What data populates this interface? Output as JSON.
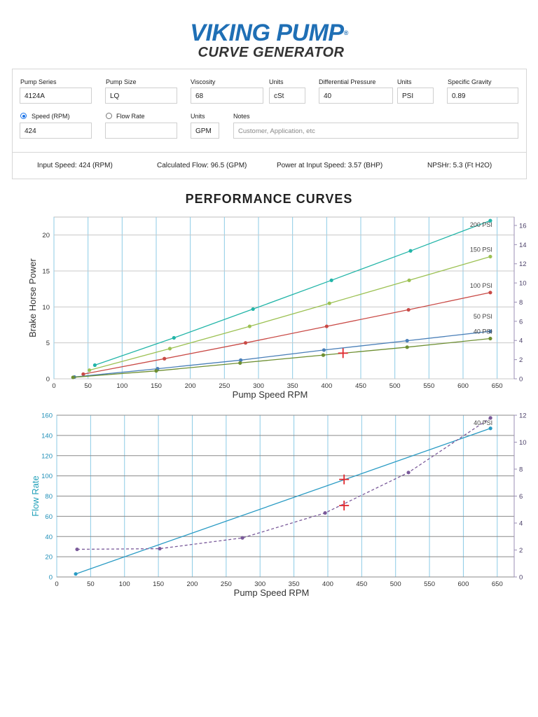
{
  "logo": {
    "line1": "VIKING PUMP",
    "registered": "®",
    "line2": "CURVE GENERATOR"
  },
  "form": {
    "pump_series": {
      "label": "Pump Series",
      "value": "4124A"
    },
    "pump_size": {
      "label": "Pump Size",
      "value": "LQ"
    },
    "viscosity": {
      "label": "Viscosity",
      "value": "68"
    },
    "viscosity_units": {
      "label": "Units",
      "value": "cSt"
    },
    "differential_pressure": {
      "label": "Differential Pressure",
      "value": "40"
    },
    "pressure_units": {
      "label": "Units",
      "value": "PSI"
    },
    "specific_gravity": {
      "label": "Specific Gravity",
      "value": "0.89"
    },
    "speed": {
      "label": "Speed (RPM)",
      "value": "424",
      "selected": true
    },
    "flow_rate": {
      "label": "Flow Rate",
      "value": "",
      "selected": false
    },
    "flow_units": {
      "label": "Units",
      "value": "GPM"
    },
    "notes": {
      "label": "Notes",
      "placeholder": "Customer, Application, etc"
    }
  },
  "results": {
    "input_speed": "Input Speed: 424 (RPM)",
    "calculated_flow": "Calculated Flow: 96.5 (GPM)",
    "power": "Power at Input Speed: 3.57 (BHP)",
    "npshr": "NPSHr: 5.3 (Ft H2O)"
  },
  "section_title": "PERFORMANCE CURVES",
  "chart_data": [
    {
      "type": "line",
      "title": "",
      "xlabel": "Pump Speed RPM",
      "ylabel": "Brake Horse Power",
      "xlim": [
        0,
        675
      ],
      "ylim": [
        0,
        22.5
      ],
      "x_ticks": [
        0,
        50,
        100,
        150,
        200,
        250,
        300,
        350,
        400,
        450,
        500,
        550,
        600,
        650
      ],
      "y_ticks": [
        0,
        5,
        10,
        15,
        20
      ],
      "y2lim": [
        0,
        16.875
      ],
      "y2_ticks": [
        0,
        2,
        4,
        6,
        8,
        10,
        12,
        14,
        16
      ],
      "grid": true,
      "series": [
        {
          "name": "200 PSI",
          "color": "#23b5a8",
          "points": [
            [
              60,
              1.9
            ],
            [
              176,
              5.7
            ],
            [
              292,
              9.7
            ],
            [
              407,
              13.7
            ],
            [
              523,
              17.8
            ],
            [
              640,
              22.0
            ]
          ]
        },
        {
          "name": "150 PSI",
          "color": "#9cc153",
          "points": [
            [
              52,
              1.2
            ],
            [
              170,
              4.2
            ],
            [
              287,
              7.3
            ],
            [
              404,
              10.5
            ],
            [
              521,
              13.7
            ],
            [
              640,
              17.0
            ]
          ]
        },
        {
          "name": "100 PSI",
          "color": "#c94a46",
          "points": [
            [
              43,
              0.65
            ],
            [
              162,
              2.8
            ],
            [
              281,
              5.0
            ],
            [
              400,
              7.3
            ],
            [
              520,
              9.6
            ],
            [
              640,
              12.0
            ]
          ]
        },
        {
          "name": "50 PSI",
          "color": "#4a7fb8",
          "points": [
            [
              30,
              0.25
            ],
            [
              152,
              1.4
            ],
            [
              274,
              2.6
            ],
            [
              396,
              4.0
            ],
            [
              518,
              5.3
            ],
            [
              640,
              6.6
            ]
          ]
        },
        {
          "name": "40 PSI",
          "color": "#6e8f32",
          "points": [
            [
              28,
              0.2
            ],
            [
              150,
              1.1
            ],
            [
              273,
              2.2
            ],
            [
              395,
              3.3
            ],
            [
              518,
              4.4
            ],
            [
              640,
              5.6
            ]
          ]
        }
      ],
      "marker": {
        "x": 424,
        "y": 3.57,
        "color": "#e0282e"
      }
    },
    {
      "type": "line",
      "title": "",
      "xlabel": "Pump Speed RPM",
      "ylabel": "Flow Rate",
      "xlim": [
        0,
        675
      ],
      "ylim": [
        0,
        160
      ],
      "x_ticks": [
        0,
        50,
        100,
        150,
        200,
        250,
        300,
        350,
        400,
        450,
        500,
        550,
        600,
        650
      ],
      "y_ticks": [
        0,
        20,
        40,
        60,
        80,
        100,
        120,
        140,
        160
      ],
      "y2lim": [
        0,
        12
      ],
      "y2_ticks": [
        0,
        2,
        4,
        6,
        8,
        10,
        12
      ],
      "grid": true,
      "series": [
        {
          "name": "",
          "color": "#2a9bc4",
          "axis": "left",
          "points": [
            [
              28,
              3
            ],
            [
              640,
              147
            ]
          ]
        },
        {
          "name": "40 PSI",
          "color": "#7a5a9a",
          "axis": "right",
          "dashed": true,
          "points": [
            [
              30,
              2.05
            ],
            [
              152,
              2.1
            ],
            [
              274,
              2.9
            ],
            [
              396,
              4.75
            ],
            [
              519,
              7.75
            ],
            [
              640,
              11.8
            ]
          ]
        }
      ],
      "markers": [
        {
          "x": 424,
          "y": 96.5,
          "axis": "left",
          "color": "#e0282e"
        },
        {
          "x": 424,
          "y": 5.3,
          "axis": "right",
          "color": "#e0282e"
        }
      ]
    }
  ]
}
